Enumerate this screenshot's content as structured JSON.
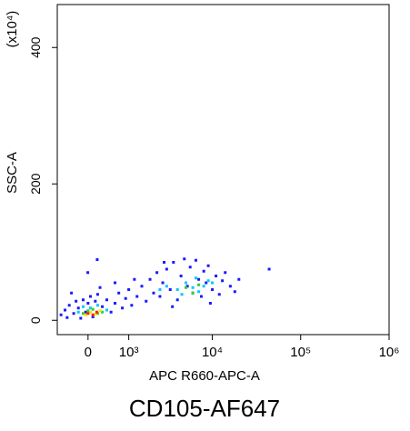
{
  "chart_data": {
    "type": "scatter",
    "title": "CD105-AF647",
    "x_label": "APC R660-APC-A",
    "y_label": "SSC-A",
    "y_unit": "(x10⁴)",
    "xscale": "asinh",
    "asinh_width": 787,
    "xlim": [
      -700,
      1000000
    ],
    "ylim": [
      -21,
      463
    ],
    "xticks": [
      0,
      {
        "value": 1000,
        "label": "10³"
      },
      {
        "value": 10000,
        "label": "10⁴"
      },
      {
        "value": 100000,
        "label": "10⁵"
      },
      {
        "value": 1000000,
        "label": "10⁶"
      }
    ],
    "yticks": [
      0,
      200,
      400
    ],
    "series": [
      {
        "color": "#1a1aff",
        "x": [
          -600,
          -500,
          -450,
          -400,
          -300,
          -250,
          -200,
          -150,
          -100,
          -50,
          0,
          50,
          100,
          150,
          200,
          300,
          400,
          500,
          600,
          700,
          800,
          900,
          1000,
          1100,
          1300,
          1500,
          1700,
          1900,
          2100,
          2300,
          2500,
          2700,
          3000,
          3300,
          3600,
          4000,
          4400,
          4800,
          5200,
          5600,
          6000,
          6500,
          7000,
          7500,
          8000,
          8500,
          9000,
          10000,
          11000,
          12000,
          13000,
          14000,
          16000,
          18000,
          20000,
          44000,
          -5,
          1200,
          2800,
          600,
          3500,
          9500,
          -350,
          250,
          190
        ],
        "values": [
          8,
          15,
          4,
          22,
          10,
          28,
          18,
          3,
          30,
          12,
          25,
          35,
          5,
          28,
          38,
          20,
          30,
          12,
          25,
          40,
          18,
          32,
          45,
          22,
          35,
          50,
          28,
          60,
          40,
          70,
          35,
          55,
          75,
          45,
          85,
          30,
          65,
          90,
          50,
          78,
          40,
          88,
          60,
          35,
          72,
          55,
          80,
          45,
          65,
          38,
          58,
          70,
          50,
          42,
          60,
          75,
          70,
          60,
          85,
          55,
          20,
          25,
          40,
          48,
          89
        ]
      },
      {
        "color": "#00c8ff",
        "x": [
          -200,
          -100,
          50,
          200,
          400,
          3000,
          4000,
          5000,
          6000,
          7000,
          8000,
          9000,
          4500,
          6500,
          2500,
          10000
        ],
        "values": [
          12,
          20,
          18,
          22,
          15,
          50,
          45,
          55,
          48,
          42,
          50,
          58,
          38,
          62,
          45,
          55
        ]
      },
      {
        "color": "#30d030",
        "x": [
          -100,
          0,
          100,
          200,
          300,
          5000,
          7000,
          6000
        ],
        "values": [
          10,
          14,
          16,
          10,
          12,
          48,
          52,
          40
        ]
      },
      {
        "color": "#ffe000",
        "x": [
          -50,
          50,
          150,
          250
        ],
        "values": [
          8,
          12,
          9,
          14
        ]
      },
      {
        "color": "#ff2000",
        "x": [
          0,
          100,
          180
        ],
        "values": [
          10,
          8,
          12
        ]
      }
    ]
  }
}
